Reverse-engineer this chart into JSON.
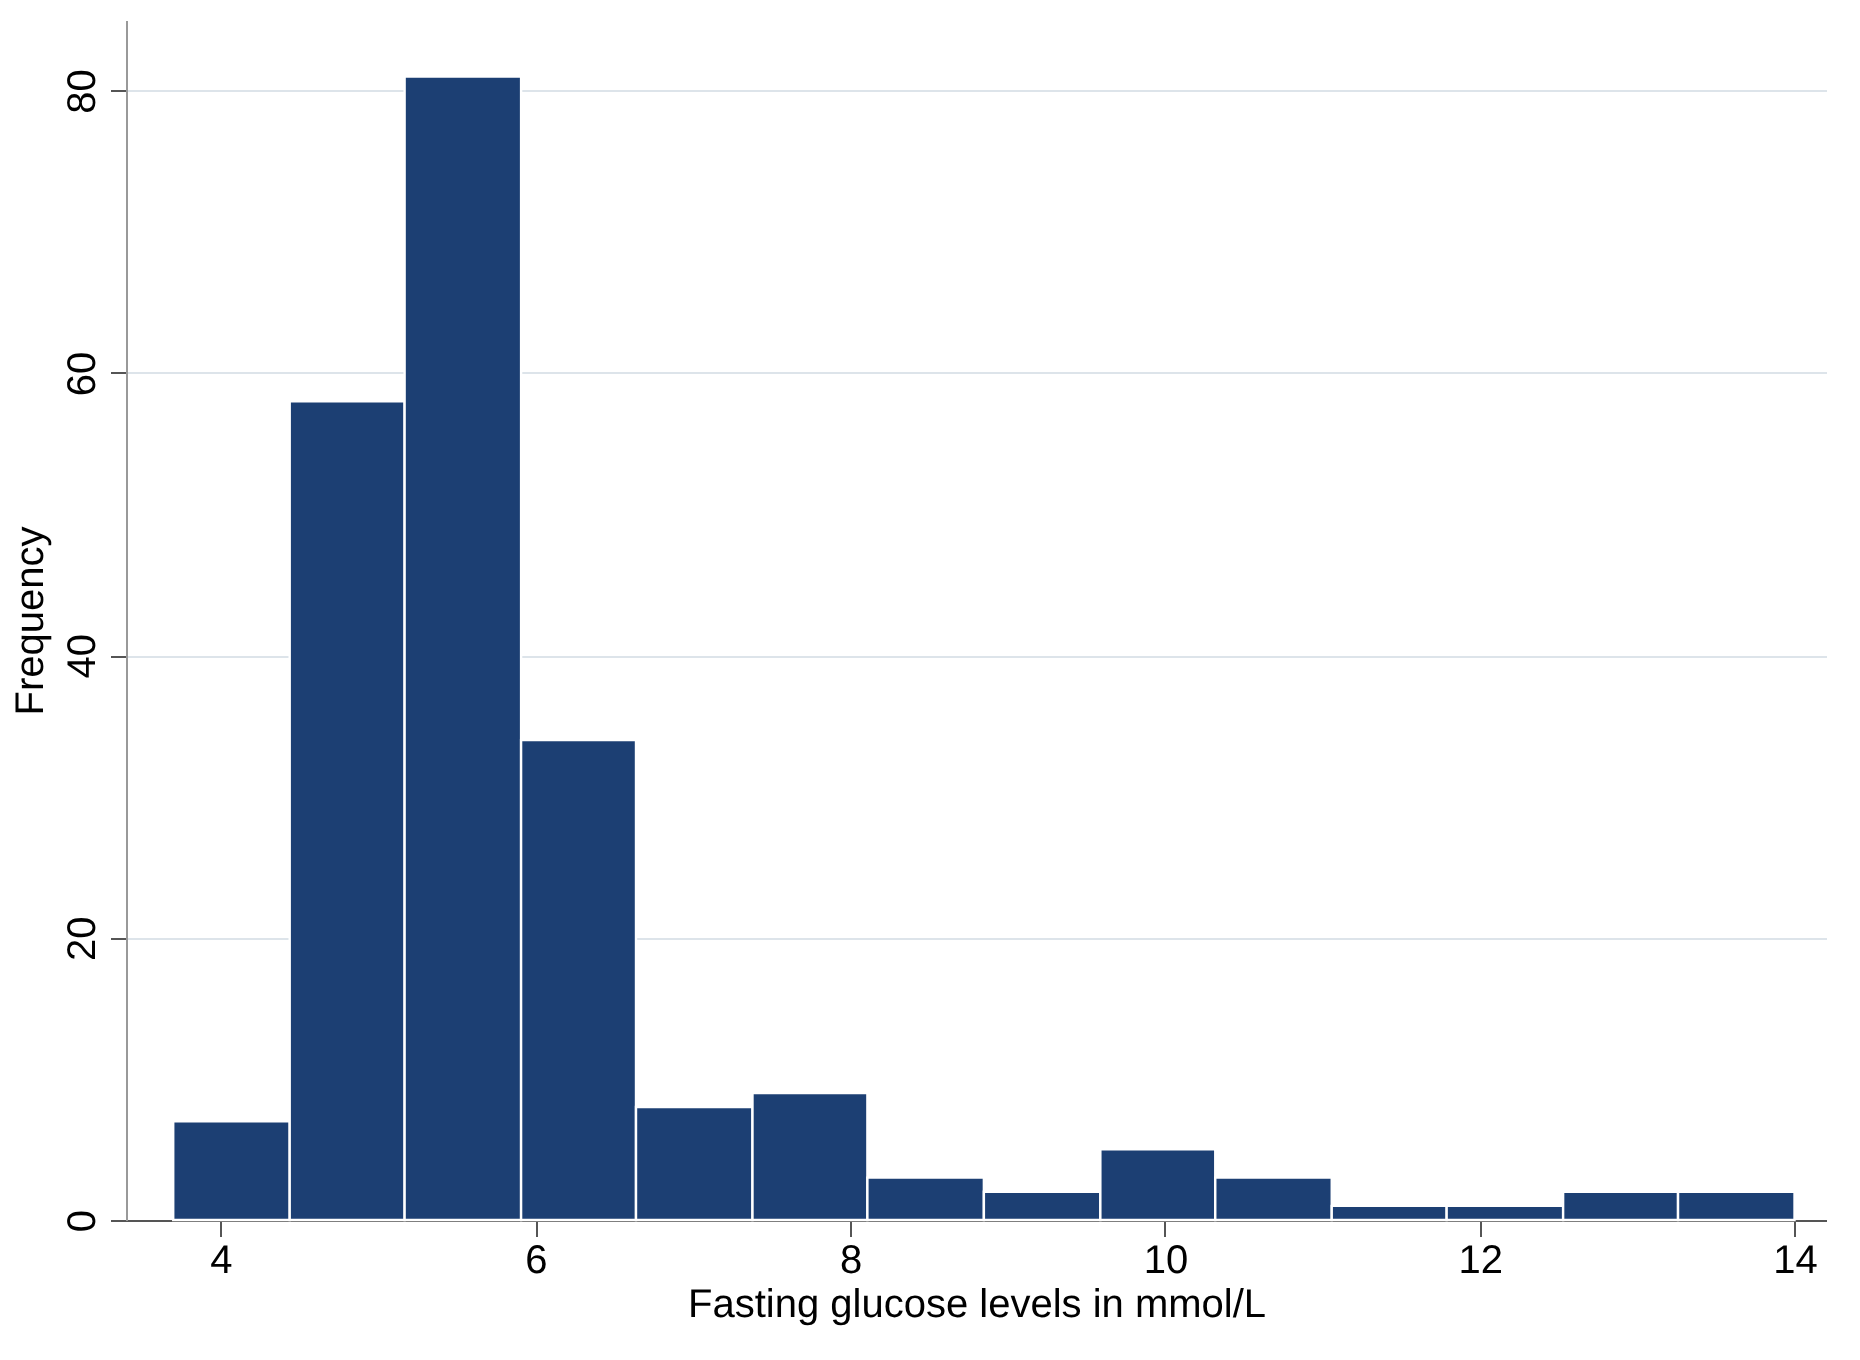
{
  "chart_data": {
    "type": "histogram",
    "xlabel": "Fasting glucose levels in mmol/L",
    "ylabel": "Frequency",
    "bins": [
      3.7,
      4.44,
      5.17,
      5.91,
      6.64,
      7.38,
      8.11,
      8.85,
      9.59,
      10.32,
      11.06,
      11.79,
      12.53,
      13.26,
      14
    ],
    "values": [
      7,
      58,
      81,
      34,
      8,
      9,
      3,
      2,
      5,
      3,
      1,
      1,
      2,
      2
    ],
    "color": "#1c3f73",
    "xlim": [
      3.4,
      14.2
    ],
    "xticks": [
      4,
      6,
      8,
      10,
      12,
      14
    ],
    "ylim": [
      0,
      85
    ],
    "yticks": [
      0,
      20,
      40,
      60,
      80
    ],
    "grid": "y"
  }
}
